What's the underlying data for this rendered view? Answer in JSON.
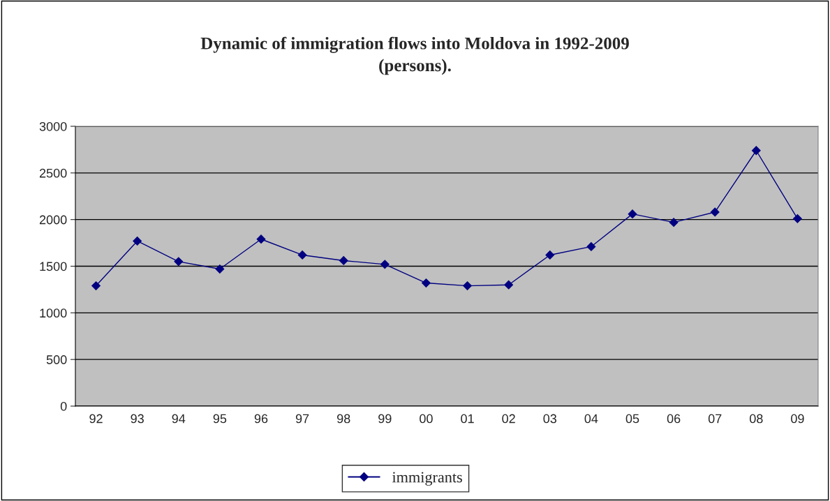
{
  "chart_data": {
    "type": "line",
    "title": "Dynamic of immigration flows into Moldova in 1992-2009\n(persons).",
    "categories": [
      "92",
      "93",
      "94",
      "95",
      "96",
      "97",
      "98",
      "99",
      "00",
      "01",
      "02",
      "03",
      "04",
      "05",
      "06",
      "07",
      "08",
      "09"
    ],
    "series": [
      {
        "name": "immigrants",
        "color": "#000080",
        "values": [
          1290,
          1770,
          1550,
          1470,
          1790,
          1620,
          1560,
          1520,
          1320,
          1290,
          1300,
          1620,
          1710,
          2060,
          1970,
          2080,
          2740,
          2010
        ]
      }
    ],
    "ylim": [
      0,
      3000
    ],
    "yticks": [
      0,
      500,
      1000,
      1500,
      2000,
      2500,
      3000
    ],
    "grid": "y",
    "legend": "bottom",
    "marker": "diamond",
    "line_style": "solid"
  }
}
